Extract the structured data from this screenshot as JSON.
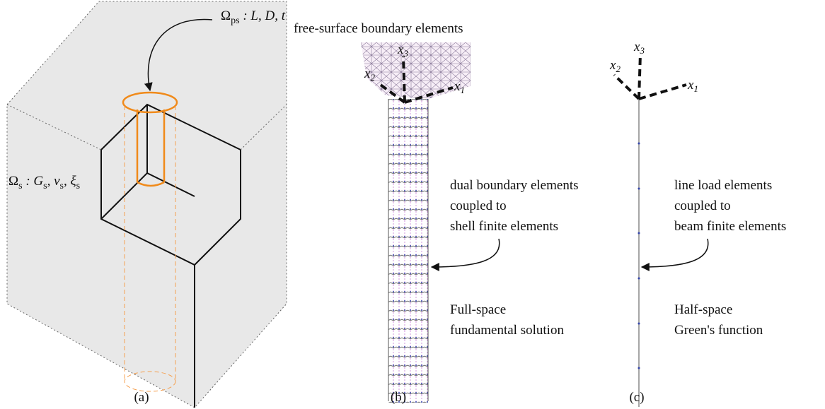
{
  "panel_a": {
    "pile_label": {
      "parts": [
        "Ω",
        "ps",
        " : L, D, t"
      ]
    },
    "soil_label": {
      "parts": [
        "Ω",
        "s",
        " : G",
        "s",
        ", ν",
        "s",
        ", ξ",
        "s"
      ]
    },
    "caption": "(a)"
  },
  "panel_b": {
    "top_label": "free-surface boundary elements",
    "axes": [
      {
        "symbol": "x",
        "index": "3"
      },
      {
        "symbol": "x",
        "index": "2"
      },
      {
        "symbol": "x",
        "index": "1"
      }
    ],
    "element_label": [
      "dual boundary elements",
      "coupled to",
      "shell finite elements"
    ],
    "solution_label": [
      "Full-space",
      "fundamental solution"
    ],
    "caption": "(b)"
  },
  "panel_c": {
    "axes": [
      {
        "symbol": "x",
        "index": "3"
      },
      {
        "symbol": "x",
        "index": "2"
      },
      {
        "symbol": "x",
        "index": "1"
      }
    ],
    "element_label": [
      "line load elements",
      "coupled to",
      "beam finite elements"
    ],
    "solution_label": [
      "Half-space",
      "Green's function"
    ],
    "caption": "(c)"
  }
}
